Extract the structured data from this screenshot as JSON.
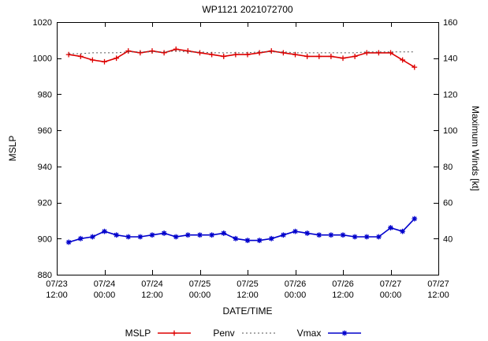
{
  "title": "WP1121 2021072700",
  "axes": {
    "left_label": "MSLP",
    "right_label": "Maximum Winds [kt]",
    "x_label": "DATE/TIME"
  },
  "legend": [
    {
      "label": "MSLP",
      "color": "#dd0000",
      "line": "solid",
      "marker": "plus"
    },
    {
      "label": "Penv",
      "color": "#555555",
      "line": "dotted",
      "marker": "none"
    },
    {
      "label": "Vmax",
      "color": "#0000cc",
      "line": "solid",
      "marker": "star"
    }
  ],
  "chart_data": {
    "type": "line",
    "title": "WP1121 2021072700",
    "xlabel": "DATE/TIME",
    "ylabel_left": "MSLP",
    "ylabel_right": "Maximum Winds [kt]",
    "xlim": [
      0,
      96
    ],
    "ylim_left": [
      880,
      1020
    ],
    "ylim_right": [
      20,
      160
    ],
    "grid": false,
    "legend_position": "bottom-center",
    "x_ticks": [
      {
        "date": "07/23",
        "time": "12:00",
        "hour": 0
      },
      {
        "date": "07/24",
        "time": "00:00",
        "hour": 12
      },
      {
        "date": "07/24",
        "time": "12:00",
        "hour": 24
      },
      {
        "date": "07/25",
        "time": "00:00",
        "hour": 36
      },
      {
        "date": "07/25",
        "time": "12:00",
        "hour": 48
      },
      {
        "date": "07/26",
        "time": "00:00",
        "hour": 60
      },
      {
        "date": "07/26",
        "time": "12:00",
        "hour": 72
      },
      {
        "date": "07/27",
        "time": "00:00",
        "hour": 84
      },
      {
        "date": "07/27",
        "time": "12:00",
        "hour": 96
      }
    ],
    "y_ticks_left": [
      880,
      900,
      920,
      940,
      960,
      980,
      1000,
      1020
    ],
    "y_ticks_right": [
      40,
      60,
      80,
      100,
      120,
      140,
      160
    ],
    "x_hours": [
      3,
      6,
      9,
      12,
      15,
      18,
      21,
      24,
      27,
      30,
      33,
      36,
      39,
      42,
      45,
      48,
      51,
      54,
      57,
      60,
      63,
      66,
      69,
      72,
      75,
      78,
      81,
      84,
      87,
      90
    ],
    "series": [
      {
        "name": "MSLP",
        "axis": "left",
        "color": "#dd0000",
        "line": "solid",
        "marker": "plus",
        "values": [
          1002,
          1001,
          999,
          998,
          1000,
          1004,
          1003,
          1004,
          1003,
          1005,
          1004,
          1003,
          1002,
          1001,
          1002,
          1002,
          1003,
          1004,
          1003,
          1002,
          1001,
          1001,
          1001,
          1000,
          1001,
          1003,
          1003,
          1003,
          999,
          995
        ]
      },
      {
        "name": "Penv",
        "axis": "left",
        "color": "#555555",
        "line": "dotted",
        "marker": "none",
        "values": [
          1002.5,
          1002.5,
          1003,
          1003,
          1003,
          1003.5,
          1003.5,
          1003.5,
          1003.5,
          1004,
          1003.5,
          1003.5,
          1003,
          1003,
          1003,
          1003,
          1003.5,
          1003.5,
          1003.5,
          1003,
          1003,
          1003,
          1003,
          1003,
          1003,
          1003.5,
          1003.5,
          1003.5,
          1003.5,
          1003.5
        ]
      },
      {
        "name": "Vmax",
        "axis": "right",
        "color": "#0000cc",
        "line": "solid",
        "marker": "star",
        "values": [
          38,
          40,
          41,
          44,
          42,
          41,
          41,
          42,
          43,
          41,
          42,
          42,
          42,
          43,
          40,
          39,
          39,
          40,
          42,
          44,
          43,
          42,
          42,
          42,
          41,
          41,
          41,
          46,
          44,
          51
        ]
      }
    ]
  }
}
